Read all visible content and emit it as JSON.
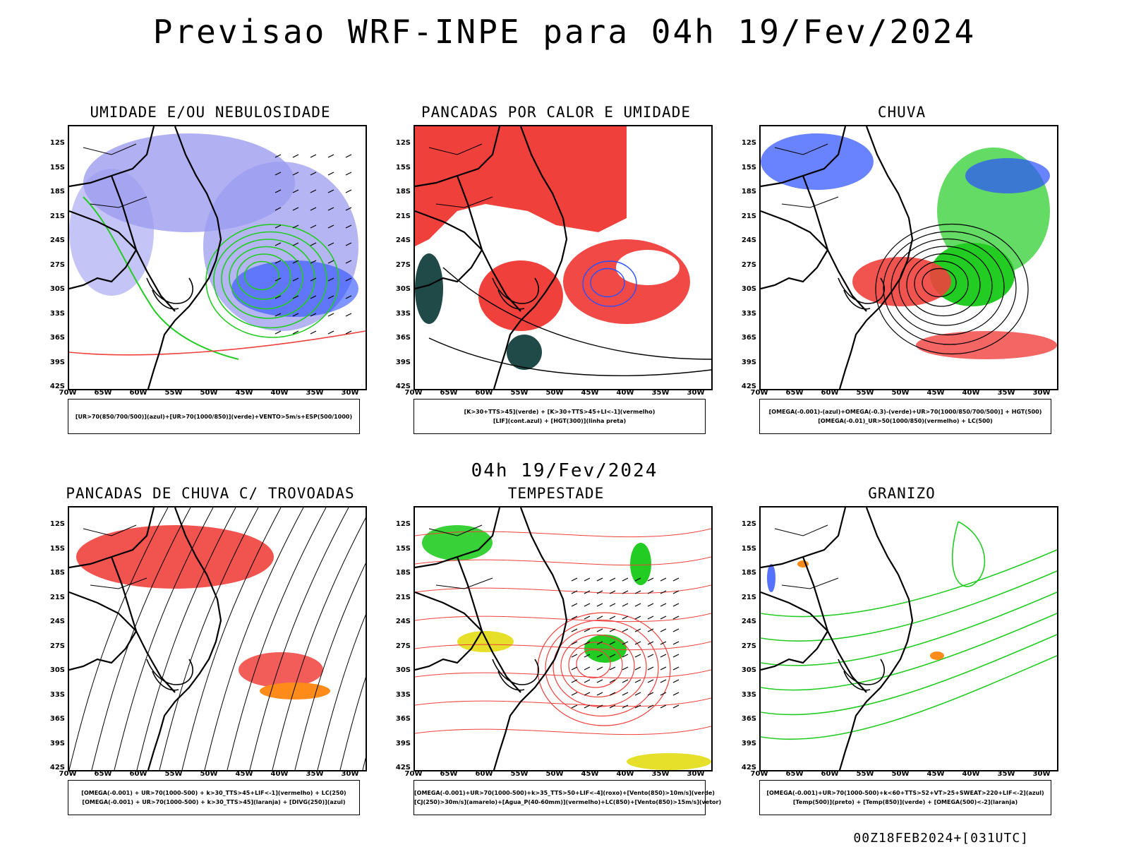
{
  "title": "Previsao WRF-INPE  para 04h 19/Fev/2024",
  "subtitle": "04h 19/Fev/2024",
  "footer": "00Z18FEB2024+[031UTC]",
  "lat_labels": [
    "12S",
    "15S",
    "18S",
    "21S",
    "24S",
    "27S",
    "30S",
    "33S",
    "36S",
    "39S",
    "42S"
  ],
  "lon_labels": [
    "70W",
    "65W",
    "60W",
    "55W",
    "50W",
    "45W",
    "40W",
    "35W",
    "30W"
  ],
  "panels": [
    {
      "title": "UMIDADE E/OU NEBULOSIDADE",
      "caption": [
        "[UR>70(850/700/500)](azul)+[UR>70(1000/850)](verde)+VENTO>5m/s+ESP(500/1000)"
      ]
    },
    {
      "title": "PANCADAS POR CALOR E UMIDADE",
      "caption": [
        "[K>30+TTS>45](verde) + [K>30+TTS>45+LI<-1](vermelho)",
        "[LIF](cont.azul) + [HGT(300)](linha preta)"
      ]
    },
    {
      "title": "CHUVA",
      "caption": [
        "[OMEGA(-0.001)-(azul)+OMEGA(-0.3)-(verde)+UR>70(1000/850/700/500)] + HGT(500)",
        "[OMEGA(-0.01)_UR>50(1000/850)(vermelho) + LC(500)"
      ]
    },
    {
      "title": "PANCADAS DE CHUVA C/ TROVOADAS",
      "caption": [
        "[OMEGA(-0.001) + UR>70(1000-500) + k>30_TTS>45+LIF<-1](vermelho) + LC(250)",
        "[OMEGA(-0.001) + UR>70(1000-500) + k>30_TTS>45](laranja) + [DIVG(250)](azul)"
      ]
    },
    {
      "title": "TEMPESTADE",
      "caption": [
        "[OMEGA(-0.001)+UR>70(1000-500)+k>35_TTS>50+LIF<-4](roxo)+[Vento(850)>10m/s](verde)",
        "[CJ(250)>30m/s](amarelo)+[Agua_P(40-60mm)](vermelho)+LC(850)+[Vento(850)>15m/s](vetor)"
      ]
    },
    {
      "title": "GRANIZO",
      "caption": [
        "[OMEGA(-0.001)+UR>70(1000-500)+k<60+TTS>52+VT>25+SWEAT>220+LIF<-2](azul)",
        "[Temp(500)](preto) + [Temp(850)](verde) + [OMEGA(500)<-2](laranja)"
      ]
    }
  ],
  "colors": {
    "red": "#f0403c",
    "green": "#22cc22",
    "blue": "#2a4fff",
    "lavender": "#9c9cf0",
    "teal": "#1f4a48",
    "orange": "#ff8c1a",
    "yellow": "#e6e02a"
  }
}
